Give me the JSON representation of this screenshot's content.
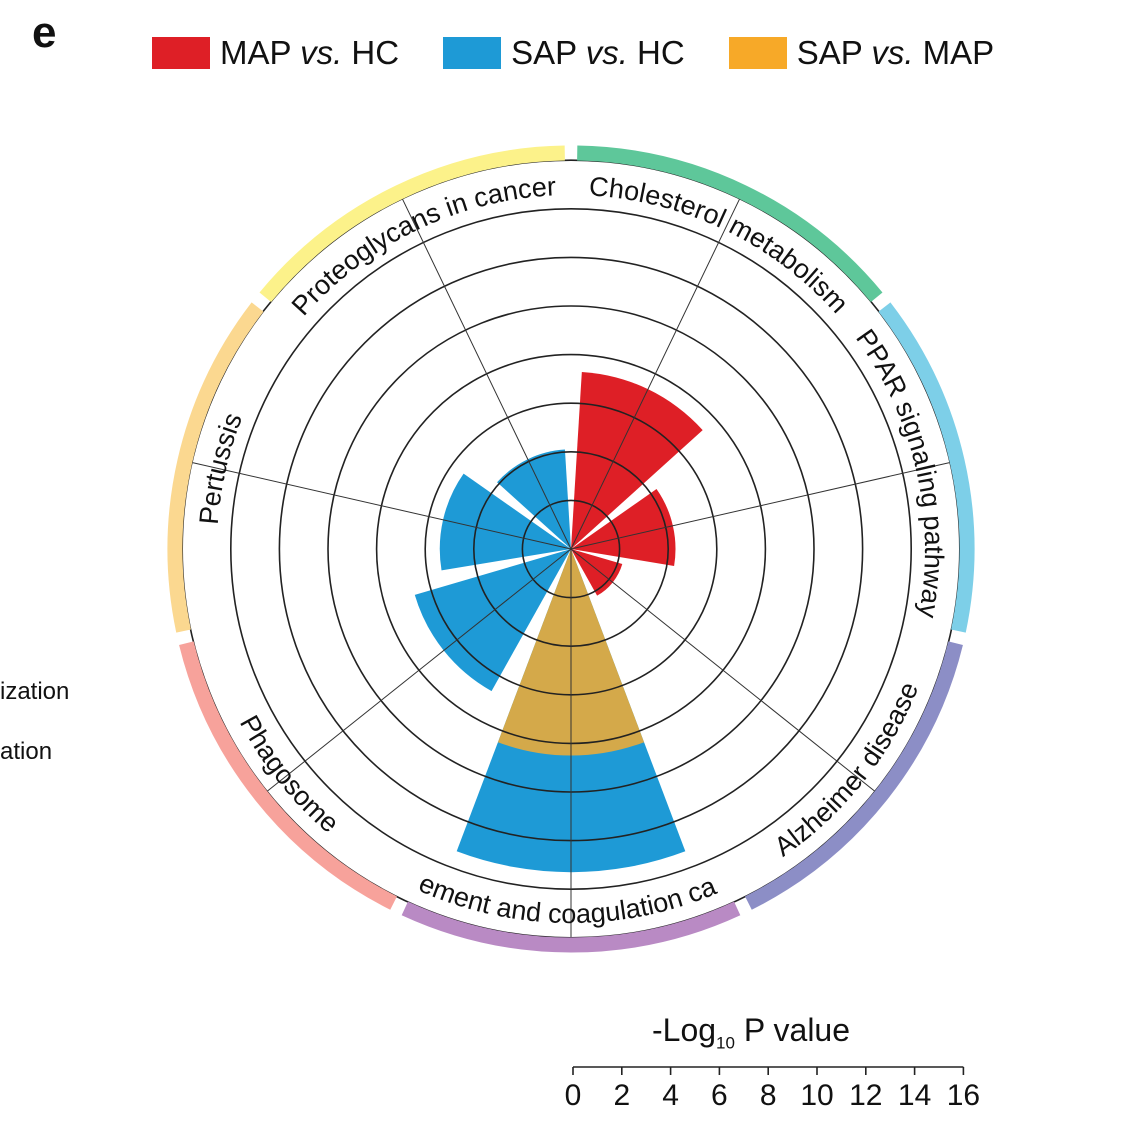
{
  "panel_letter": "e",
  "legend": [
    {
      "label_main": "MAP ",
      "label_vs": "vs.",
      "label_end": " HC",
      "color": "#de1f26"
    },
    {
      "label_main": "SAP ",
      "label_vs": "vs.",
      "label_end": " HC",
      "color": "#1e9ad6"
    },
    {
      "label_main": "SAP ",
      "label_vs": "vs.",
      "label_end": " MAP",
      "color": "#f7a928"
    }
  ],
  "cut_labels": [
    "ization",
    "ation"
  ],
  "scale": {
    "title_prefix": "-Log",
    "title_sub": "10",
    "title_suffix": " P value",
    "ticks": [
      "0",
      "2",
      "4",
      "6",
      "8",
      "10",
      "12",
      "14",
      "16"
    ]
  },
  "chart_data": {
    "type": "radial-bar",
    "value_label": "-Log10 P value",
    "rmax": 16,
    "rings": [
      2,
      4,
      6,
      8,
      10,
      12,
      14,
      16
    ],
    "categories": [
      {
        "name": "Cholesterol metabolism",
        "color": "#5ec79a"
      },
      {
        "name": "PPAR signaling pathway",
        "color": "#7dcfe8"
      },
      {
        "name": "Alzheimer disease",
        "color": "#8c8ec6"
      },
      {
        "name": "Complement and coagulation cascades",
        "color": "#b98ac4"
      },
      {
        "name": "Phagosome",
        "color": "#f7a29b"
      },
      {
        "name": "Pertussis",
        "color": "#fbd890"
      },
      {
        "name": "Proteoglycans in cancer",
        "color": "#fcf28a"
      }
    ],
    "series": [
      {
        "name": "MAP vs. HC",
        "color": "#de1f26",
        "values": [
          7.3,
          4.3,
          2.2,
          0,
          0,
          0,
          0
        ]
      },
      {
        "name": "SAP vs. HC",
        "color": "#1e9ad6",
        "values": [
          0,
          0,
          0,
          13.3,
          6.7,
          5.4,
          4.1
        ]
      },
      {
        "name": "SAP vs. MAP",
        "color": "#d4a94a",
        "values": [
          0,
          0,
          0,
          8.5,
          0,
          0,
          0
        ]
      }
    ]
  }
}
